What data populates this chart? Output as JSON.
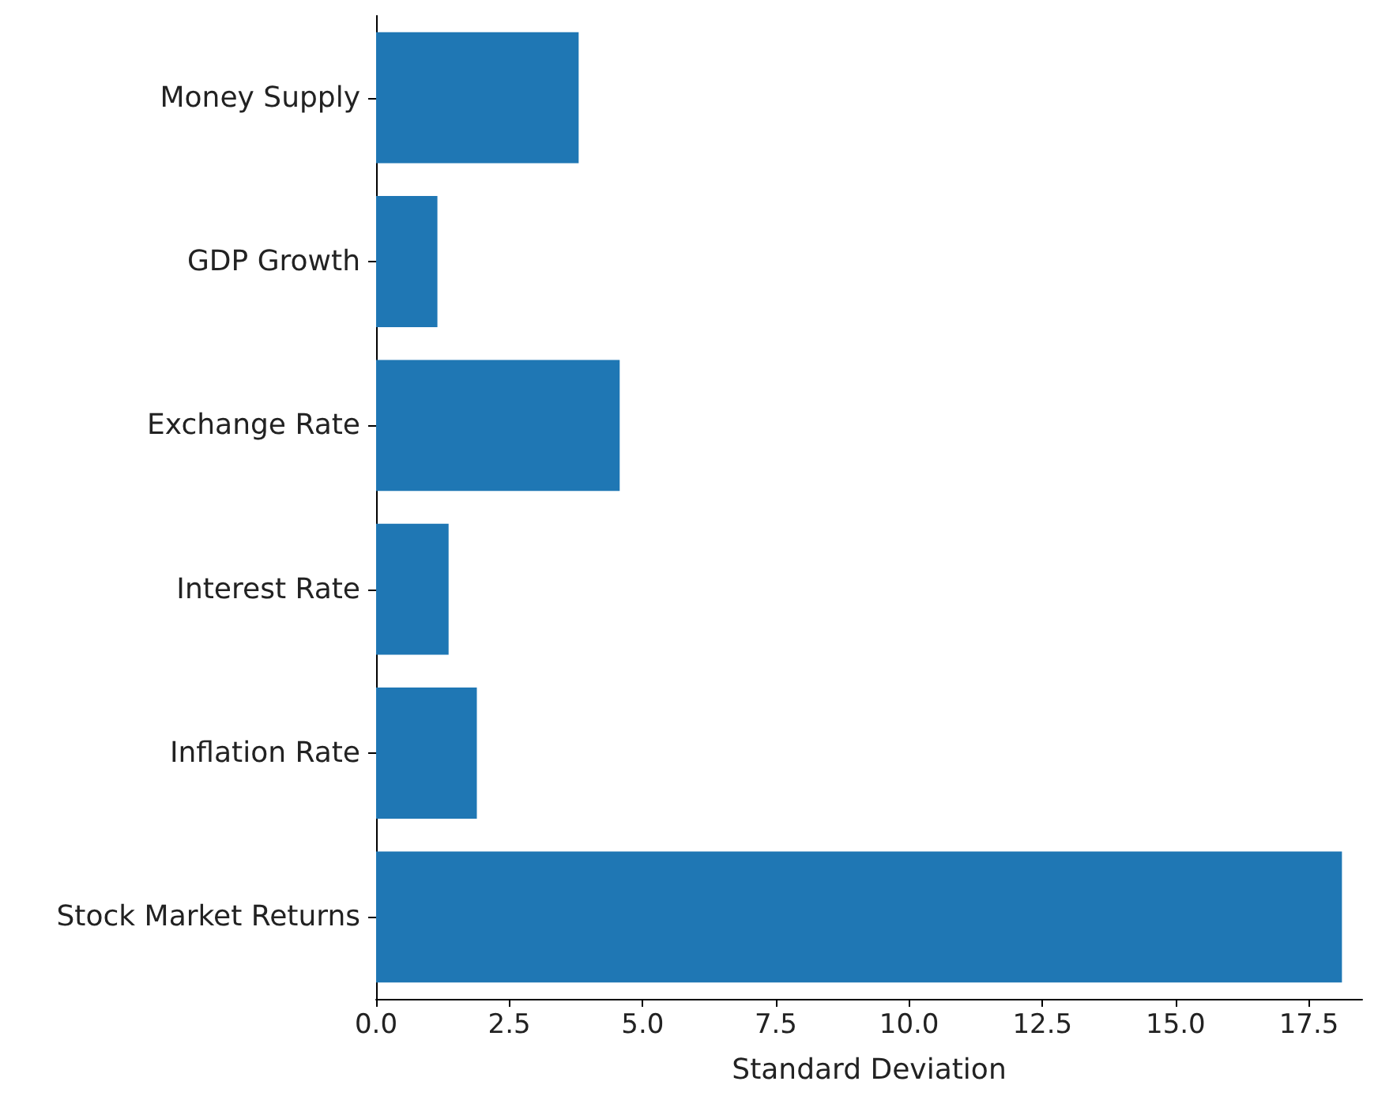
{
  "chart_data": {
    "type": "bar",
    "orientation": "horizontal",
    "xlabel": "Standard Deviation",
    "categories": [
      "Money Supply",
      "GDP Growth",
      "Exchange Rate",
      "Interest Rate",
      "Inflation Rate",
      "Stock Market Returns"
    ],
    "values": [
      3.8,
      1.15,
      4.57,
      1.36,
      1.89,
      18.12
    ],
    "color": "#1f77b4",
    "xlim": [
      0,
      18.5
    ],
    "xticks": [
      {
        "value": 0,
        "label": "0.0"
      },
      {
        "value": 2.5,
        "label": "2.5"
      },
      {
        "value": 5,
        "label": "5.0"
      },
      {
        "value": 7.5,
        "label": "7.5"
      },
      {
        "value": 10,
        "label": "10.0"
      },
      {
        "value": 12.5,
        "label": "12.5"
      },
      {
        "value": 15,
        "label": "15.0"
      },
      {
        "value": 17.5,
        "label": "17.5"
      }
    ],
    "grid": false
  }
}
